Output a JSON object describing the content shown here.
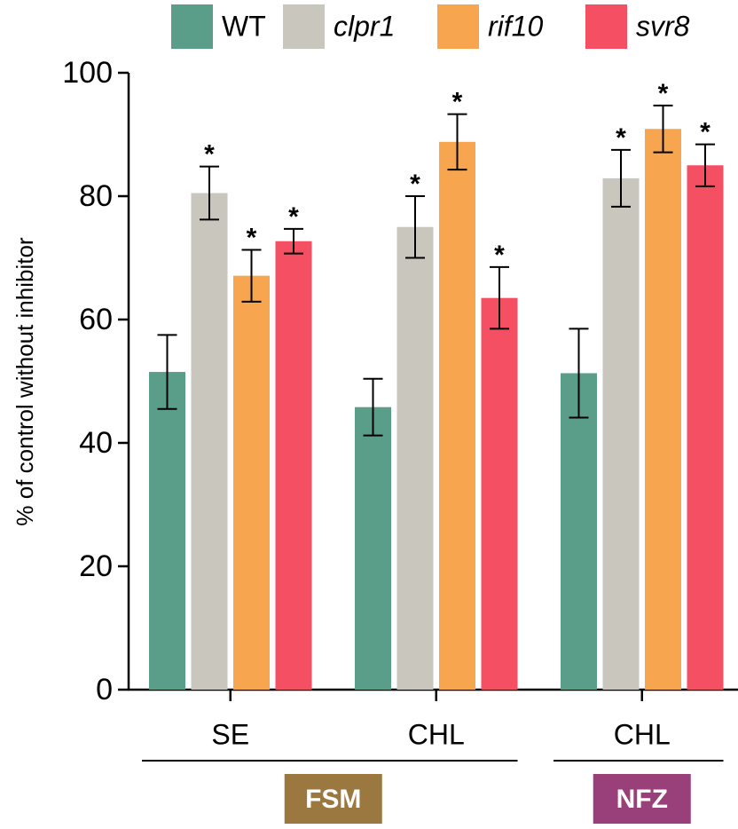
{
  "chart_data": {
    "type": "bar",
    "y_label": "% of control without inhibitor",
    "ylim": [
      0,
      100
    ],
    "yticks": [
      0,
      20,
      40,
      60,
      80,
      100
    ],
    "groups": [
      {
        "name": "FSM",
        "color": "#9c7841",
        "categories": [
          "SE",
          "CHL"
        ]
      },
      {
        "name": "NFZ",
        "color": "#993f7a",
        "categories": [
          "CHL"
        ]
      }
    ],
    "series": [
      {
        "name": "WT",
        "color": "#5a9e89",
        "italic": false,
        "values": [
          51.5,
          45.8,
          51.3
        ],
        "errors": [
          6.0,
          4.6,
          7.2
        ]
      },
      {
        "name": "clpr1",
        "color": "#c8c6bd",
        "italic": true,
        "values": [
          80.5,
          75.0,
          82.9
        ],
        "errors": [
          4.3,
          5.0,
          4.6
        ],
        "significance": [
          "*",
          "*",
          "*"
        ]
      },
      {
        "name": "rif10",
        "color": "#f7a64f",
        "italic": true,
        "values": [
          67.1,
          88.8,
          90.9
        ],
        "errors": [
          4.2,
          4.5,
          3.8
        ],
        "significance": [
          "*",
          "*",
          "*"
        ]
      },
      {
        "name": "svr8",
        "color": "#f54f63",
        "italic": true,
        "values": [
          72.7,
          63.5,
          85.0
        ],
        "errors": [
          2.0,
          5.0,
          3.4
        ],
        "significance": [
          "*",
          "*",
          "*"
        ]
      }
    ]
  }
}
